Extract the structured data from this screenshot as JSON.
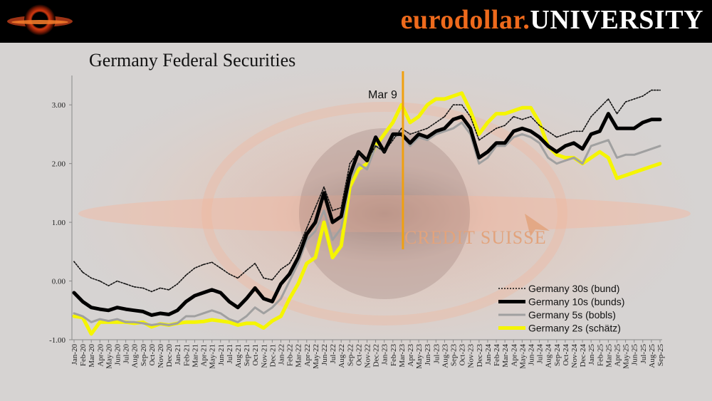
{
  "header": {
    "brand_part1": "eurodollar.",
    "brand_part2": "UNIVERSITY",
    "brand_color": "#ee6a1c"
  },
  "chart_data": {
    "type": "line",
    "title": "Germany Federal Securities",
    "xlabel": "",
    "ylabel": "",
    "ylim": [
      -1.0,
      3.5
    ],
    "yticks": [
      "3.00",
      "2.00",
      "1.00",
      "0.00",
      "-1.00"
    ],
    "ytick_values": [
      3,
      2,
      1,
      0,
      -1
    ],
    "grid": false,
    "legend_position": "bottom-right",
    "categories": [
      "Jan-20",
      "Feb-20",
      "Mar-20",
      "Apr-20",
      "May-20",
      "Jun-20",
      "Jul-20",
      "Aug-20",
      "Sep-20",
      "Oct-20",
      "Nov-20",
      "Dec-20",
      "Jan-21",
      "Feb-21",
      "Mar-21",
      "Apr-21",
      "May-21",
      "Jun-21",
      "Jul-21",
      "Aug-21",
      "Sep-21",
      "Oct-21",
      "Nov-21",
      "Dec-21",
      "Jan-22",
      "Feb-22",
      "Mar-22",
      "Apr-22",
      "May-22",
      "Jun-22",
      "Jul-22",
      "Aug-22",
      "Sep-22",
      "Oct-22",
      "Nov-22",
      "Dec-22",
      "Jan-23",
      "Feb-23",
      "Mar-23",
      "Apr-23",
      "May-23",
      "Jun-23",
      "Jul-23",
      "Aug-23",
      "Sep-23",
      "Oct-23",
      "Nov-23",
      "Dec-23",
      "Jan-24",
      "Feb-24",
      "Mar-24",
      "Apr-24",
      "May-24",
      "Jun-24",
      "Jul-24",
      "Aug-24",
      "Sep-24",
      "Oct-24",
      "Nov-24",
      "Dec-24",
      "Jan-25",
      "Feb-25",
      "Mar-25",
      "Apr-25",
      "May-25",
      "Jun-25",
      "Jul-25",
      "Aug-25",
      "Sep-25"
    ],
    "series": [
      {
        "name": "Germany 30s (bund)",
        "color": "#111111",
        "style": "dotted",
        "values": [
          0.33,
          0.15,
          0.05,
          0.0,
          -0.08,
          0.0,
          -0.05,
          -0.1,
          -0.12,
          -0.18,
          -0.12,
          -0.15,
          -0.05,
          0.1,
          0.22,
          0.28,
          0.32,
          0.22,
          0.12,
          0.05,
          0.18,
          0.3,
          0.05,
          0.02,
          0.2,
          0.3,
          0.55,
          0.9,
          1.25,
          1.6,
          1.2,
          1.25,
          2.0,
          2.2,
          2.05,
          2.3,
          2.2,
          2.4,
          2.6,
          2.5,
          2.55,
          2.6,
          2.7,
          2.8,
          3.0,
          3.0,
          2.8,
          2.4,
          2.5,
          2.6,
          2.65,
          2.8,
          2.75,
          2.8,
          2.65,
          2.55,
          2.45,
          2.5,
          2.55,
          2.55,
          2.8,
          2.95,
          3.1,
          2.85,
          3.05,
          3.1,
          3.15,
          3.25,
          3.25
        ]
      },
      {
        "name": "Germany 10s (bunds)",
        "color": "#000000",
        "style": "solid-thick",
        "values": [
          -0.2,
          -0.35,
          -0.45,
          -0.48,
          -0.5,
          -0.45,
          -0.48,
          -0.5,
          -0.52,
          -0.58,
          -0.55,
          -0.57,
          -0.5,
          -0.35,
          -0.25,
          -0.2,
          -0.15,
          -0.2,
          -0.35,
          -0.45,
          -0.3,
          -0.12,
          -0.3,
          -0.35,
          -0.05,
          0.12,
          0.4,
          0.8,
          1.0,
          1.5,
          1.0,
          1.1,
          1.8,
          2.2,
          2.05,
          2.45,
          2.2,
          2.5,
          2.5,
          2.35,
          2.5,
          2.45,
          2.55,
          2.6,
          2.75,
          2.8,
          2.6,
          2.1,
          2.2,
          2.35,
          2.35,
          2.55,
          2.6,
          2.55,
          2.45,
          2.3,
          2.2,
          2.3,
          2.35,
          2.25,
          2.5,
          2.55,
          2.85,
          2.6,
          2.6,
          2.6,
          2.7,
          2.75,
          2.75
        ]
      },
      {
        "name": "Germany 5s (bobls)",
        "color": "#a0a0a0",
        "style": "solid",
        "values": [
          -0.55,
          -0.6,
          -0.7,
          -0.65,
          -0.68,
          -0.65,
          -0.7,
          -0.7,
          -0.72,
          -0.75,
          -0.73,
          -0.75,
          -0.72,
          -0.6,
          -0.6,
          -0.55,
          -0.5,
          -0.55,
          -0.65,
          -0.7,
          -0.6,
          -0.45,
          -0.55,
          -0.45,
          -0.3,
          0.0,
          0.3,
          0.7,
          0.85,
          1.2,
          0.7,
          0.9,
          1.7,
          2.0,
          1.9,
          2.3,
          2.2,
          2.45,
          2.5,
          2.3,
          2.45,
          2.4,
          2.5,
          2.55,
          2.6,
          2.7,
          2.5,
          2.0,
          2.1,
          2.3,
          2.3,
          2.45,
          2.5,
          2.45,
          2.35,
          2.1,
          2.0,
          2.05,
          2.1,
          2.0,
          2.3,
          2.35,
          2.4,
          2.1,
          2.15,
          2.15,
          2.2,
          2.25,
          2.3
        ]
      },
      {
        "name": "Germany 2s (schätz)",
        "color": "#f5f500",
        "style": "solid-thick",
        "values": [
          -0.6,
          -0.62,
          -0.9,
          -0.7,
          -0.7,
          -0.7,
          -0.7,
          -0.72,
          -0.7,
          -0.78,
          -0.73,
          -0.75,
          -0.72,
          -0.7,
          -0.7,
          -0.69,
          -0.66,
          -0.68,
          -0.7,
          -0.75,
          -0.72,
          -0.72,
          -0.8,
          -0.68,
          -0.6,
          -0.3,
          -0.05,
          0.3,
          0.4,
          1.0,
          0.4,
          0.6,
          1.6,
          1.9,
          2.0,
          2.3,
          2.5,
          2.7,
          3.0,
          2.7,
          2.8,
          3.0,
          3.1,
          3.1,
          3.15,
          3.2,
          2.9,
          2.5,
          2.7,
          2.85,
          2.85,
          2.9,
          2.95,
          2.95,
          2.7,
          2.3,
          2.15,
          2.1,
          2.1,
          2.0,
          2.1,
          2.2,
          2.1,
          1.75,
          1.8,
          1.85,
          1.9,
          1.95,
          2.0
        ]
      }
    ],
    "annotations": [
      {
        "text": "Mar 9",
        "x": "Mar-23",
        "color": "#f0a010"
      },
      {
        "text": "CREDIT SUISSE",
        "x": "Mar-23",
        "color": "#e2a37c"
      }
    ]
  }
}
